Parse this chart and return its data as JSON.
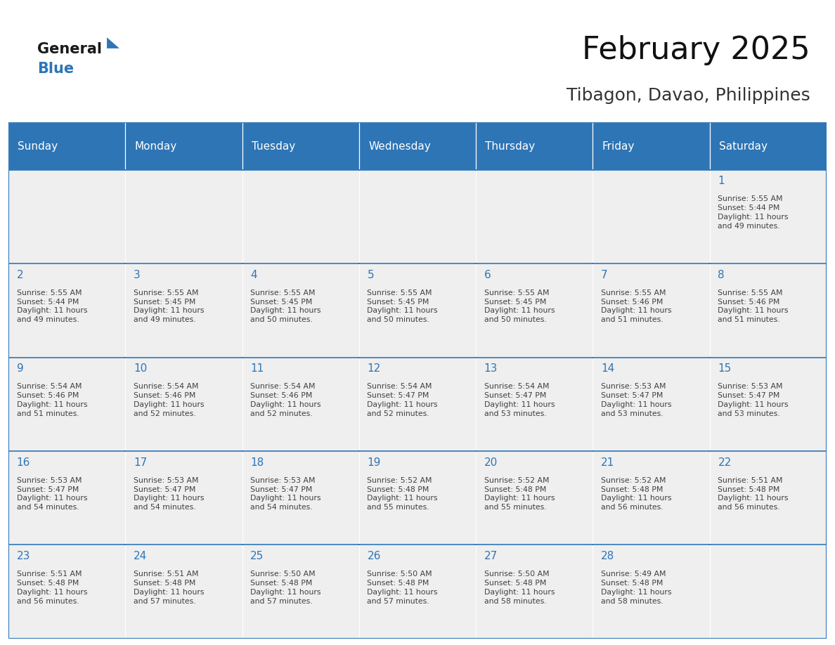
{
  "title": "February 2025",
  "subtitle": "Tibagon, Davao, Philippines",
  "header_bg": "#2E75B6",
  "header_text_color": "#FFFFFF",
  "cell_bg": "#EFEFEF",
  "day_number_color": "#2E75B6",
  "text_color": "#404040",
  "border_color": "#2E75B6",
  "days_of_week": [
    "Sunday",
    "Monday",
    "Tuesday",
    "Wednesday",
    "Thursday",
    "Friday",
    "Saturday"
  ],
  "weeks": [
    [
      {
        "day": null,
        "info": null
      },
      {
        "day": null,
        "info": null
      },
      {
        "day": null,
        "info": null
      },
      {
        "day": null,
        "info": null
      },
      {
        "day": null,
        "info": null
      },
      {
        "day": null,
        "info": null
      },
      {
        "day": 1,
        "info": "Sunrise: 5:55 AM\nSunset: 5:44 PM\nDaylight: 11 hours\nand 49 minutes."
      }
    ],
    [
      {
        "day": 2,
        "info": "Sunrise: 5:55 AM\nSunset: 5:44 PM\nDaylight: 11 hours\nand 49 minutes."
      },
      {
        "day": 3,
        "info": "Sunrise: 5:55 AM\nSunset: 5:45 PM\nDaylight: 11 hours\nand 49 minutes."
      },
      {
        "day": 4,
        "info": "Sunrise: 5:55 AM\nSunset: 5:45 PM\nDaylight: 11 hours\nand 50 minutes."
      },
      {
        "day": 5,
        "info": "Sunrise: 5:55 AM\nSunset: 5:45 PM\nDaylight: 11 hours\nand 50 minutes."
      },
      {
        "day": 6,
        "info": "Sunrise: 5:55 AM\nSunset: 5:45 PM\nDaylight: 11 hours\nand 50 minutes."
      },
      {
        "day": 7,
        "info": "Sunrise: 5:55 AM\nSunset: 5:46 PM\nDaylight: 11 hours\nand 51 minutes."
      },
      {
        "day": 8,
        "info": "Sunrise: 5:55 AM\nSunset: 5:46 PM\nDaylight: 11 hours\nand 51 minutes."
      }
    ],
    [
      {
        "day": 9,
        "info": "Sunrise: 5:54 AM\nSunset: 5:46 PM\nDaylight: 11 hours\nand 51 minutes."
      },
      {
        "day": 10,
        "info": "Sunrise: 5:54 AM\nSunset: 5:46 PM\nDaylight: 11 hours\nand 52 minutes."
      },
      {
        "day": 11,
        "info": "Sunrise: 5:54 AM\nSunset: 5:46 PM\nDaylight: 11 hours\nand 52 minutes."
      },
      {
        "day": 12,
        "info": "Sunrise: 5:54 AM\nSunset: 5:47 PM\nDaylight: 11 hours\nand 52 minutes."
      },
      {
        "day": 13,
        "info": "Sunrise: 5:54 AM\nSunset: 5:47 PM\nDaylight: 11 hours\nand 53 minutes."
      },
      {
        "day": 14,
        "info": "Sunrise: 5:53 AM\nSunset: 5:47 PM\nDaylight: 11 hours\nand 53 minutes."
      },
      {
        "day": 15,
        "info": "Sunrise: 5:53 AM\nSunset: 5:47 PM\nDaylight: 11 hours\nand 53 minutes."
      }
    ],
    [
      {
        "day": 16,
        "info": "Sunrise: 5:53 AM\nSunset: 5:47 PM\nDaylight: 11 hours\nand 54 minutes."
      },
      {
        "day": 17,
        "info": "Sunrise: 5:53 AM\nSunset: 5:47 PM\nDaylight: 11 hours\nand 54 minutes."
      },
      {
        "day": 18,
        "info": "Sunrise: 5:53 AM\nSunset: 5:47 PM\nDaylight: 11 hours\nand 54 minutes."
      },
      {
        "day": 19,
        "info": "Sunrise: 5:52 AM\nSunset: 5:48 PM\nDaylight: 11 hours\nand 55 minutes."
      },
      {
        "day": 20,
        "info": "Sunrise: 5:52 AM\nSunset: 5:48 PM\nDaylight: 11 hours\nand 55 minutes."
      },
      {
        "day": 21,
        "info": "Sunrise: 5:52 AM\nSunset: 5:48 PM\nDaylight: 11 hours\nand 56 minutes."
      },
      {
        "day": 22,
        "info": "Sunrise: 5:51 AM\nSunset: 5:48 PM\nDaylight: 11 hours\nand 56 minutes."
      }
    ],
    [
      {
        "day": 23,
        "info": "Sunrise: 5:51 AM\nSunset: 5:48 PM\nDaylight: 11 hours\nand 56 minutes."
      },
      {
        "day": 24,
        "info": "Sunrise: 5:51 AM\nSunset: 5:48 PM\nDaylight: 11 hours\nand 57 minutes."
      },
      {
        "day": 25,
        "info": "Sunrise: 5:50 AM\nSunset: 5:48 PM\nDaylight: 11 hours\nand 57 minutes."
      },
      {
        "day": 26,
        "info": "Sunrise: 5:50 AM\nSunset: 5:48 PM\nDaylight: 11 hours\nand 57 minutes."
      },
      {
        "day": 27,
        "info": "Sunrise: 5:50 AM\nSunset: 5:48 PM\nDaylight: 11 hours\nand 58 minutes."
      },
      {
        "day": 28,
        "info": "Sunrise: 5:49 AM\nSunset: 5:48 PM\nDaylight: 11 hours\nand 58 minutes."
      },
      {
        "day": null,
        "info": null
      }
    ]
  ],
  "logo_general_color": "#1a1a1a",
  "logo_blue_color": "#2E75B6",
  "title_fontsize": 32,
  "subtitle_fontsize": 18,
  "header_fontsize": 11,
  "day_number_fontsize": 11,
  "cell_text_fontsize": 7.8
}
